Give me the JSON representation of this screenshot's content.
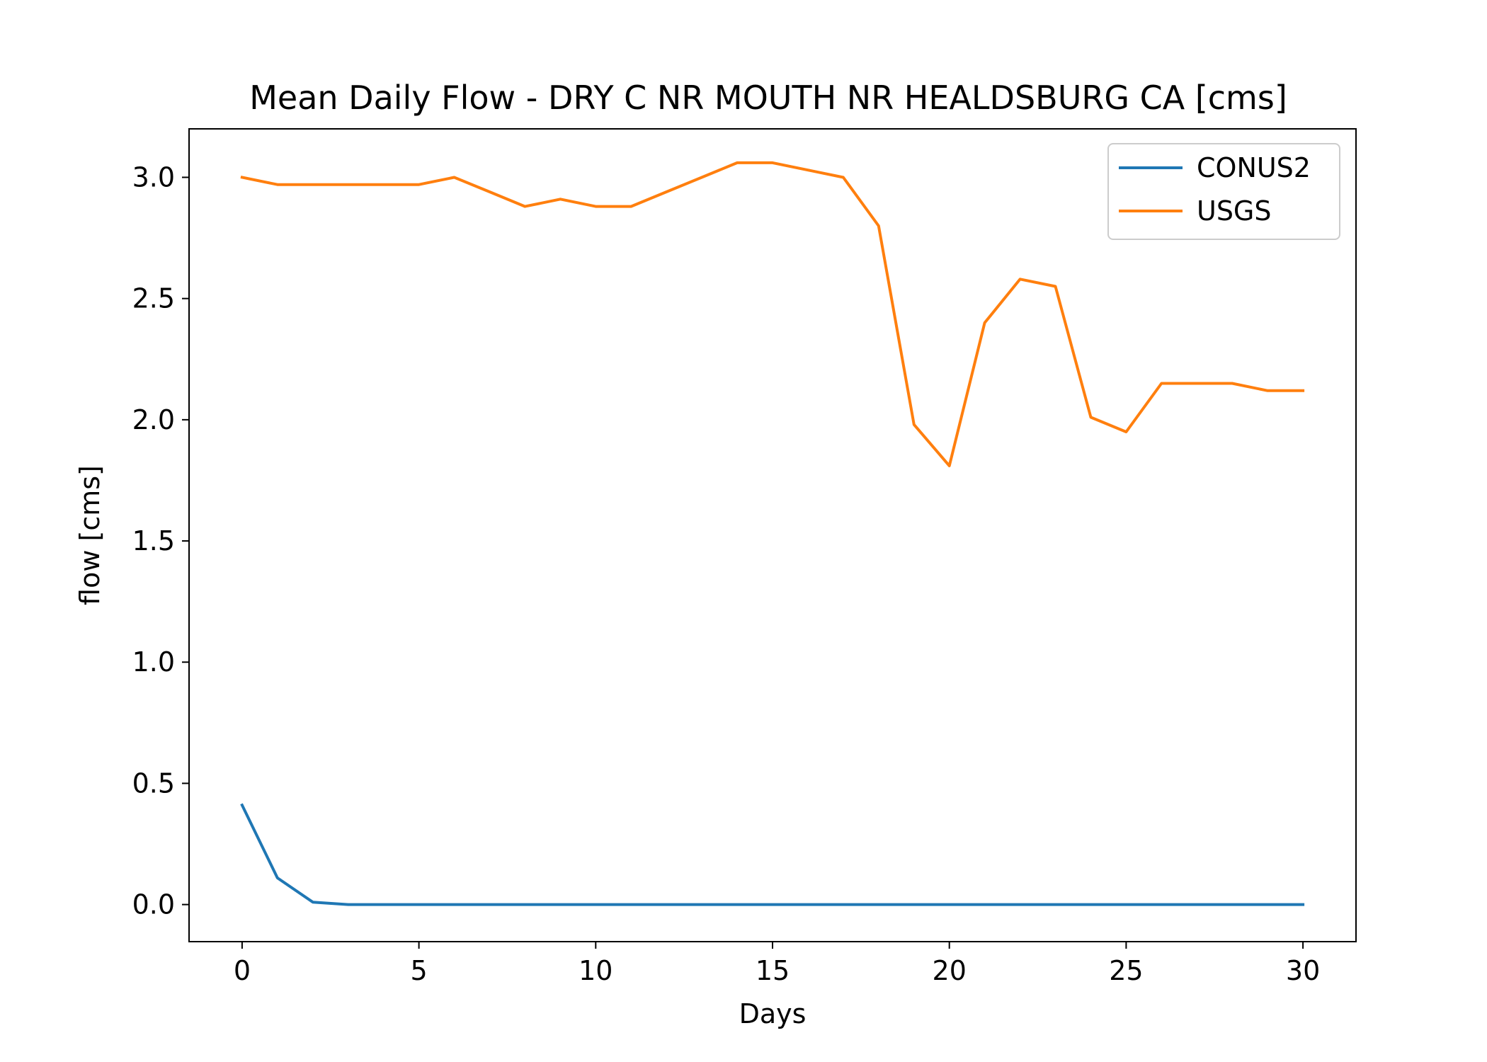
{
  "chart_data": {
    "type": "line",
    "title": "Mean Daily Flow - DRY C NR MOUTH NR HEALDSBURG CA [cms]",
    "xlabel": "Days",
    "ylabel": "flow [cms]",
    "xlim": [
      -1.5,
      31.5
    ],
    "ylim": [
      -0.153,
      3.2
    ],
    "xticks": [
      0,
      5,
      10,
      15,
      20,
      25,
      30
    ],
    "xtick_labels": [
      "0",
      "5",
      "10",
      "15",
      "20",
      "25",
      "30"
    ],
    "yticks": [
      0.0,
      0.5,
      1.0,
      1.5,
      2.0,
      2.5,
      3.0
    ],
    "ytick_labels": [
      "0.0",
      "0.5",
      "1.0",
      "1.5",
      "2.0",
      "2.5",
      "3.0"
    ],
    "grid": false,
    "legend_position": "top-right",
    "x": [
      0,
      1,
      2,
      3,
      4,
      5,
      6,
      7,
      8,
      9,
      10,
      11,
      12,
      13,
      14,
      15,
      16,
      17,
      18,
      19,
      20,
      21,
      22,
      23,
      24,
      25,
      26,
      27,
      28,
      29,
      30
    ],
    "series": [
      {
        "name": "CONUS2",
        "color": "#1f77b4",
        "values": [
          0.41,
          0.11,
          0.01,
          0.0,
          0.0,
          0.0,
          0.0,
          0.0,
          0.0,
          0.0,
          0.0,
          0.0,
          0.0,
          0.0,
          0.0,
          0.0,
          0.0,
          0.0,
          0.0,
          0.0,
          0.0,
          0.0,
          0.0,
          0.0,
          0.0,
          0.0,
          0.0,
          0.0,
          0.0,
          0.0,
          0.0
        ]
      },
      {
        "name": "USGS",
        "color": "#ff7f0e",
        "values": [
          3.0,
          2.97,
          2.97,
          2.97,
          2.97,
          2.97,
          3.0,
          2.94,
          2.88,
          2.91,
          2.88,
          2.88,
          2.94,
          3.0,
          3.06,
          3.06,
          3.03,
          3.0,
          2.8,
          1.98,
          1.81,
          2.4,
          2.58,
          2.55,
          2.01,
          1.95,
          2.15,
          2.15,
          2.15,
          2.12,
          2.12
        ]
      }
    ]
  }
}
